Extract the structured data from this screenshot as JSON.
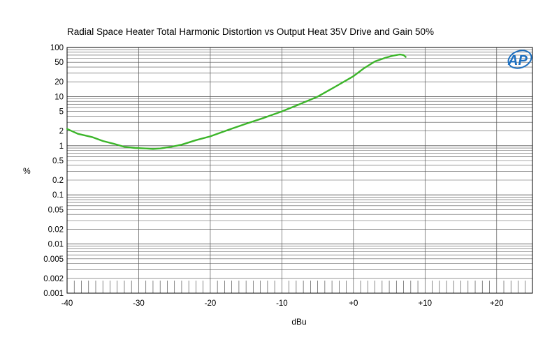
{
  "chart_data": {
    "type": "line",
    "title": "Radial Space Heater Total Harmonic Distortion vs Output Heat 35V Drive and Gain 50%",
    "xlabel": "dBu",
    "ylabel": "%",
    "xlim": [
      -40,
      25
    ],
    "ylim": [
      0.001,
      100
    ],
    "y_scale": "log",
    "grid": true,
    "x_ticks": [
      -40,
      -30,
      -20,
      -10,
      0,
      10,
      20
    ],
    "x_tick_labels": [
      "-40",
      "-30",
      "-20",
      "-10",
      "+0",
      "+10",
      "+20"
    ],
    "y_ticks": [
      100,
      50,
      20,
      10,
      5,
      2,
      1,
      0.5,
      0.2,
      0.1,
      0.05,
      0.02,
      0.01,
      0.005,
      0.002,
      0.001
    ],
    "y_tick_labels": [
      "100",
      "50",
      "20",
      "10",
      "5",
      "2",
      "1",
      "0.5",
      "0.2",
      "0.1",
      "0.05",
      "0.02",
      "0.01",
      "0.005",
      "0.002",
      "0.001"
    ],
    "series": [
      {
        "color": "#3cb52a",
        "x": [
          -40,
          -38.5,
          -36.5,
          -35,
          -33.5,
          -32,
          -30.5,
          -29,
          -28,
          -27,
          -25.5,
          -24,
          -22,
          -20,
          -17.5,
          -15,
          -12.5,
          -10,
          -7.5,
          -5,
          -2.5,
          0,
          1.5,
          3,
          4.5,
          5.5,
          6.5,
          7,
          7.3
        ],
        "y": [
          2.2,
          1.75,
          1.5,
          1.25,
          1.1,
          0.95,
          0.9,
          0.88,
          0.86,
          0.88,
          0.95,
          1.05,
          1.3,
          1.55,
          2.1,
          2.8,
          3.7,
          5.0,
          7.0,
          10.0,
          16.0,
          26.0,
          38.0,
          52.0,
          62.0,
          68.0,
          72.0,
          70.0,
          64.0
        ]
      }
    ]
  },
  "logo": {
    "text": "AP",
    "color": "#1c6fc0"
  }
}
